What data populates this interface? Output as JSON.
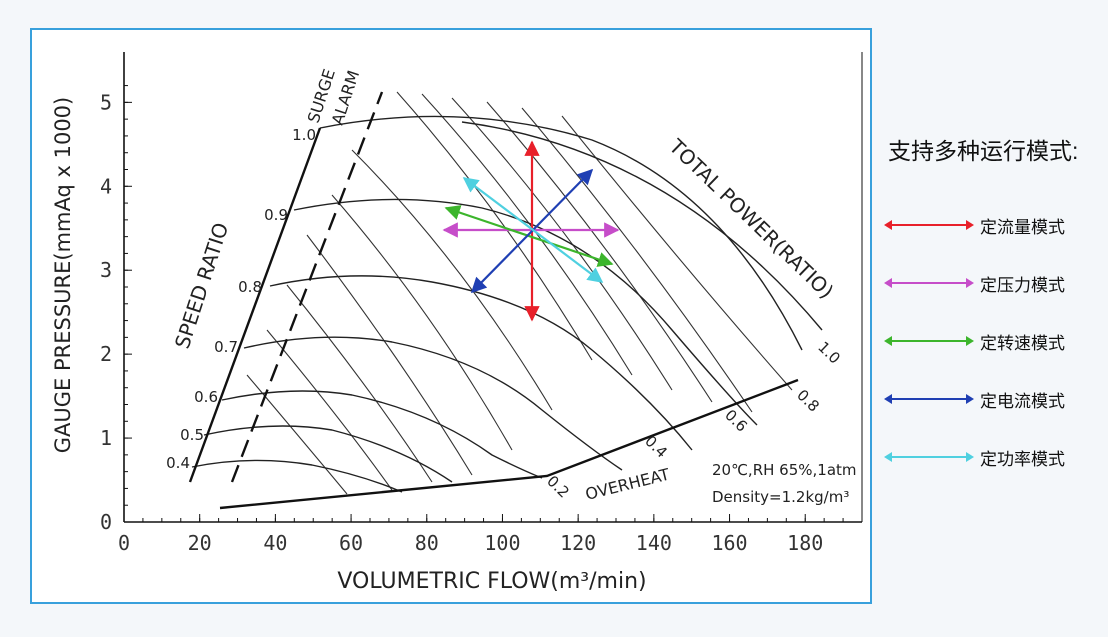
{
  "diagram": {
    "x_axis_label": "VOLUMETRIC FLOW(m³/min)",
    "y_axis_label": "GAUGE PRESSURE(mmAq x 1000)",
    "x_ticks": [
      0,
      20,
      40,
      60,
      80,
      100,
      120,
      140,
      160,
      180
    ],
    "y_ticks": [
      0,
      1,
      2,
      3,
      4,
      5
    ],
    "x_range": [
      0,
      195
    ],
    "y_range": [
      0,
      5.6
    ],
    "labels": {
      "speed_ratio": "SPEED RATIO",
      "total_power": "TOTAL POWER(RATIO)",
      "surge": "SURGE",
      "alarm": "ALARM",
      "overheat": "OVERHEAT",
      "conditions": "20℃,RH 65%,1atm",
      "density": "Density=1.2kg/m³"
    },
    "speed_ratio_values": [
      "1.0",
      "0.9",
      "0.8",
      "0.7",
      "0.6",
      "0.5",
      "0.4"
    ],
    "speed_ratio_data": [
      1.0,
      0.9,
      0.8,
      0.7,
      0.6,
      0.5,
      0.4
    ],
    "power_ratio_values": [
      "1.0",
      "0.8",
      "0.6",
      "0.4",
      "0.2"
    ],
    "power_ratio_data": [
      1.0,
      0.8,
      0.6,
      0.4,
      0.2
    ],
    "operating_point": {
      "flow": 112,
      "pressure": 3.4
    },
    "arrows": [
      {
        "mode": "constant_flow",
        "color": "#e8202a"
      },
      {
        "mode": "constant_pressure",
        "color": "#c64dc9"
      },
      {
        "mode": "constant_speed",
        "color": "#3cb52c"
      },
      {
        "mode": "constant_current",
        "color": "#1f3fb3"
      },
      {
        "mode": "constant_power",
        "color": "#4fd0e0"
      }
    ]
  },
  "legend": {
    "title": "支持多种运行模式:",
    "items": [
      {
        "label": "定流量模式",
        "color": "#e8202a",
        "icon": "double-arrow"
      },
      {
        "label": "定压力模式",
        "color": "#c64dc9",
        "icon": "double-arrow"
      },
      {
        "label": "定转速模式",
        "color": "#3cb52c",
        "icon": "double-arrow"
      },
      {
        "label": "定电流模式",
        "color": "#1f3fb3",
        "icon": "double-arrow"
      },
      {
        "label": "定功率模式",
        "color": "#4fd0e0",
        "icon": "double-arrow"
      }
    ]
  }
}
